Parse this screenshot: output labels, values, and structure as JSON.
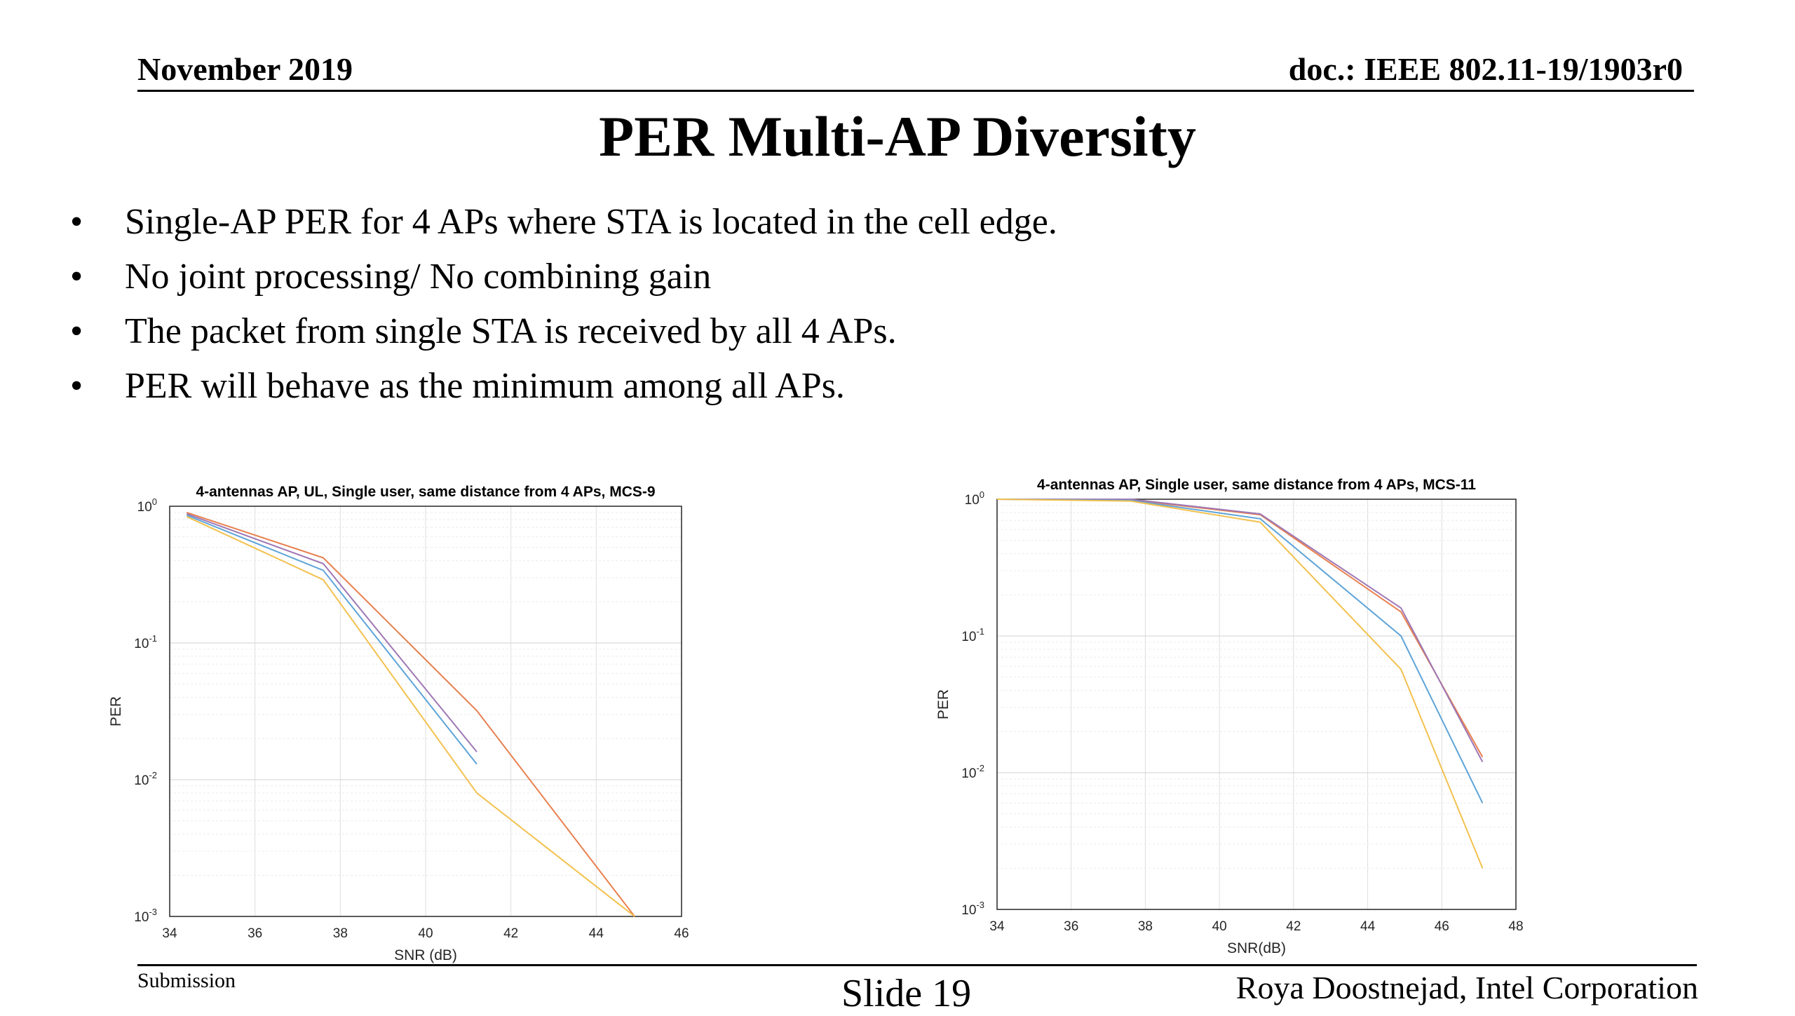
{
  "header": {
    "date": "November 2019",
    "doc_id": "doc.: IEEE 802.11-19/1903r0"
  },
  "title": "PER Multi-AP Diversity",
  "bullets": [
    "Single-AP PER for 4 APs where STA is located in the cell edge.",
    "No joint processing/ No combining gain",
    "The packet from single STA is received by all 4 APs.",
    "PER will behave as the minimum among all APs."
  ],
  "bullet_marker": "•",
  "chart_data": [
    {
      "type": "line",
      "title": "4-antennas AP, UL, Single user, same distance from 4 APs, MCS-9",
      "xlabel": "SNR (dB)",
      "ylabel": "PER",
      "xlim": [
        34,
        46
      ],
      "ylim": [
        0.001,
        1
      ],
      "yscale": "log",
      "grid": true,
      "xticks": [
        34,
        36,
        38,
        40,
        42,
        44,
        46
      ],
      "yticks": [
        {
          "value": 1,
          "label": "10",
          "exp": "0"
        },
        {
          "value": 0.1,
          "label": "10",
          "exp": "-1"
        },
        {
          "value": 0.01,
          "label": "10",
          "exp": "-2"
        },
        {
          "value": 0.001,
          "label": "10",
          "exp": "-3"
        }
      ],
      "series": [
        {
          "color": "#e8804f",
          "x": [
            34.4,
            37.6,
            41.2,
            44.9
          ],
          "y": [
            0.9,
            0.42,
            0.032,
            0.001
          ]
        },
        {
          "color": "#9e77b4",
          "x": [
            34.4,
            37.6,
            41.2
          ],
          "y": [
            0.88,
            0.38,
            0.016
          ]
        },
        {
          "color": "#5ea4d8",
          "x": [
            34.4,
            37.6,
            41.2
          ],
          "y": [
            0.86,
            0.34,
            0.013
          ]
        },
        {
          "color": "#f2c14e",
          "x": [
            34.4,
            37.6,
            41.2,
            44.9
          ],
          "y": [
            0.84,
            0.29,
            0.008,
            0.001
          ]
        }
      ]
    },
    {
      "type": "line",
      "title": "4-antennas AP, Single user, same distance from 4 APs, MCS-11",
      "xlabel": "SNR(dB)",
      "ylabel": "PER",
      "xlim": [
        34,
        48
      ],
      "ylim": [
        0.001,
        1
      ],
      "yscale": "log",
      "grid": true,
      "xticks": [
        34,
        36,
        38,
        40,
        42,
        44,
        46,
        48
      ],
      "yticks": [
        {
          "value": 1,
          "label": "10",
          "exp": "0"
        },
        {
          "value": 0.1,
          "label": "10",
          "exp": "-1"
        },
        {
          "value": 0.01,
          "label": "10",
          "exp": "-2"
        },
        {
          "value": 0.001,
          "label": "10",
          "exp": "-3"
        }
      ],
      "series": [
        {
          "color": "#e8804f",
          "x": [
            34,
            37.6,
            41.1,
            44.9,
            47.1
          ],
          "y": [
            1.0,
            0.99,
            0.77,
            0.15,
            0.013
          ]
        },
        {
          "color": "#9e77b4",
          "x": [
            34,
            37.6,
            41.1,
            44.9,
            47.1
          ],
          "y": [
            1.0,
            1.0,
            0.78,
            0.16,
            0.012
          ]
        },
        {
          "color": "#5ea4d8",
          "x": [
            34,
            37.6,
            41.1,
            44.9,
            47.1
          ],
          "y": [
            1.0,
            0.98,
            0.72,
            0.1,
            0.006
          ]
        },
        {
          "color": "#f2c14e",
          "x": [
            34,
            37.6,
            41.1,
            44.9,
            47.1
          ],
          "y": [
            1.0,
            0.97,
            0.68,
            0.057,
            0.002
          ]
        }
      ]
    }
  ],
  "footer": {
    "submission": "Submission",
    "slide": "Slide 19",
    "author": "Roya Doostnejad, Intel Corporation"
  }
}
